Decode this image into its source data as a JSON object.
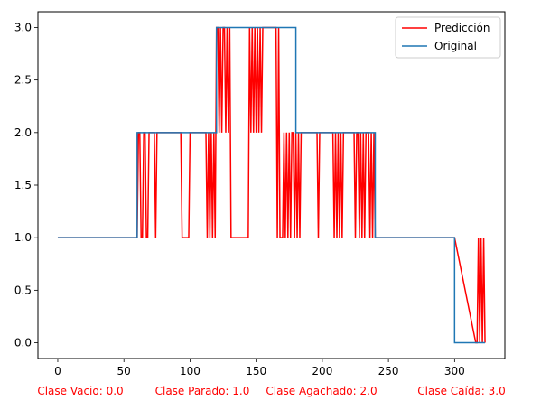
{
  "chart_data": {
    "type": "line",
    "title": "",
    "xlabel": "",
    "ylabel": "",
    "xlim": [
      -15,
      338
    ],
    "ylim": [
      -0.15,
      3.15
    ],
    "x_ticks": [
      0,
      50,
      100,
      150,
      200,
      250,
      300
    ],
    "x_tick_labels": [
      "0",
      "50",
      "100",
      "150",
      "200",
      "250",
      "300"
    ],
    "y_ticks": [
      0.0,
      0.5,
      1.0,
      1.5,
      2.0,
      2.5,
      3.0
    ],
    "y_tick_labels": [
      "0.0",
      "0.5",
      "1.0",
      "1.5",
      "2.0",
      "2.5",
      "3.0"
    ],
    "grid": false,
    "legend_position": "top-right",
    "series": [
      {
        "name": "Predicción",
        "color": "#ff0000",
        "x": [
          0,
          60,
          61,
          62,
          63,
          64,
          65,
          66,
          67,
          68,
          69,
          70,
          73,
          74,
          75,
          76,
          93,
          94,
          95,
          96,
          99,
          100,
          101,
          112,
          113,
          114,
          115,
          116,
          117,
          118,
          119,
          120,
          121,
          122,
          123,
          124,
          125,
          126,
          127,
          128,
          129,
          130,
          131,
          132,
          133,
          144,
          145,
          146,
          147,
          148,
          149,
          150,
          151,
          152,
          153,
          154,
          155,
          156,
          157,
          165,
          166,
          167,
          168,
          170,
          171,
          172,
          173,
          174,
          175,
          176,
          177,
          178,
          179,
          180,
          181,
          182,
          183,
          184,
          185,
          186,
          196,
          197,
          198,
          199,
          208,
          209,
          210,
          211,
          212,
          213,
          214,
          215,
          216,
          217,
          224,
          225,
          226,
          227,
          228,
          229,
          230,
          231,
          232,
          233,
          235,
          236,
          237,
          238,
          239,
          240,
          241,
          300,
          316,
          317,
          318,
          319,
          320,
          321,
          322,
          323
        ],
        "y": [
          1,
          1,
          2,
          2,
          1,
          1,
          2,
          2,
          1,
          1,
          2,
          2,
          2,
          1,
          2,
          2,
          2,
          1,
          1,
          1,
          1,
          2,
          2,
          2,
          1,
          2,
          1,
          2,
          1,
          2,
          1,
          3,
          3,
          2,
          3,
          2,
          3,
          3,
          2,
          3,
          2,
          3,
          1,
          1,
          1,
          1,
          3,
          2,
          3,
          2,
          3,
          2,
          3,
          2,
          3,
          2,
          3,
          3,
          3,
          3,
          1,
          3,
          1,
          1,
          2,
          1,
          2,
          1,
          2,
          1,
          2,
          2,
          1,
          2,
          1,
          2,
          1,
          2,
          2,
          2,
          2,
          1,
          2,
          2,
          2,
          1,
          2,
          1,
          2,
          1,
          2,
          1,
          2,
          2,
          2,
          1,
          2,
          2,
          1,
          2,
          1,
          2,
          1,
          2,
          2,
          1,
          2,
          1,
          2,
          1,
          1,
          1,
          0,
          0,
          1,
          0,
          1,
          0,
          1,
          0
        ]
      },
      {
        "name": "Original",
        "color": "#1f77b4",
        "x": [
          0,
          60,
          60,
          120,
          120,
          180,
          180,
          240,
          240,
          300,
          300,
          323
        ],
        "y": [
          1,
          1,
          2,
          2,
          3,
          3,
          2,
          2,
          1,
          1,
          0,
          0
        ]
      }
    ],
    "annotations": [
      "Clase Vacio: 0.0",
      "Clase Parado: 1.0",
      "Clase Agachado: 2.0",
      "Clase Caída: 3.0"
    ],
    "annotation_color": "#ff0000"
  }
}
